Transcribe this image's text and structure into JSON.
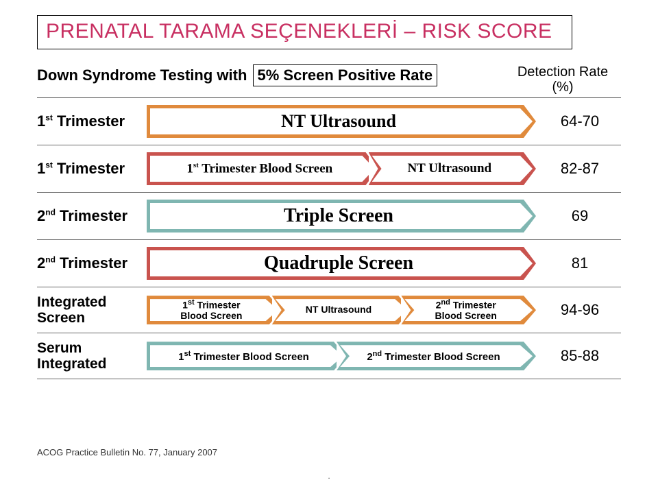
{
  "title": "PRENATAL TARAMA SEÇENEKLERİ – RISK SCORE",
  "screenPosHeader": {
    "prefix": "Down Syndrome Testing with",
    "boxed": "5% Screen Positive Rate"
  },
  "detectHeader": {
    "line1": "Detection Rate",
    "line2": "(%)"
  },
  "colors": {
    "orange": "#e08a3c",
    "red": "#c9534e",
    "teal": "#7fb6b1"
  },
  "rows": [
    {
      "labelHtml": "1<sup>st</sup> Trimester",
      "rate": "64-70",
      "shapes": [
        {
          "text": "NT Ultrasound",
          "color": "orange",
          "flex": 1,
          "font": "cursive",
          "size": 26
        }
      ]
    },
    {
      "labelHtml": "1<sup>st</sup> Trimester",
      "rate": "82-87",
      "shapes": [
        {
          "text": "1<sup>st</sup> Trimester Blood Screen",
          "color": "red",
          "flex": 0.58,
          "font": "cursive",
          "size": 19
        },
        {
          "text": "NT Ultrasound",
          "color": "red",
          "flex": 0.42,
          "font": "cursive",
          "size": 19,
          "notch": true
        }
      ]
    },
    {
      "labelHtml": "2<sup>nd</sup> Trimester",
      "rate": "69",
      "shapes": [
        {
          "text": "Triple Screen",
          "color": "teal",
          "flex": 1,
          "font": "cursive",
          "size": 28
        }
      ]
    },
    {
      "labelHtml": "2<sup>nd</sup> Trimester",
      "rate": "81",
      "shapes": [
        {
          "text": "Quadruple Screen",
          "color": "red",
          "flex": 1,
          "font": "cursive",
          "size": 28
        }
      ]
    },
    {
      "labelHtml": "Integrated<br>Screen",
      "rate": "94-96",
      "shapes": [
        {
          "text": "1<sup>st</sup> Trimester<br>Blood Screen",
          "color": "orange",
          "flex": 0.33,
          "font": "arial",
          "size": 14
        },
        {
          "text": "NT Ultrasound",
          "color": "orange",
          "flex": 0.34,
          "font": "arial",
          "size": 14,
          "notch": true
        },
        {
          "text": "2<sup>nd</sup> Trimester<br>Blood Screen",
          "color": "orange",
          "flex": 0.33,
          "font": "arial",
          "size": 14,
          "notch": true
        }
      ]
    },
    {
      "labelHtml": "Serum<br>Integrated",
      "rate": "85-88",
      "shapes": [
        {
          "text": "1<sup>st</sup> Trimester Blood Screen",
          "color": "teal",
          "flex": 0.5,
          "font": "arial",
          "size": 15
        },
        {
          "text": "2<sup>nd</sup> Trimester Blood Screen",
          "color": "teal",
          "flex": 0.5,
          "font": "arial",
          "size": 15,
          "notch": true
        }
      ]
    }
  ],
  "footnote": "ACOG Practice Bulletin No. 77, January 2007",
  "midfootText": "."
}
